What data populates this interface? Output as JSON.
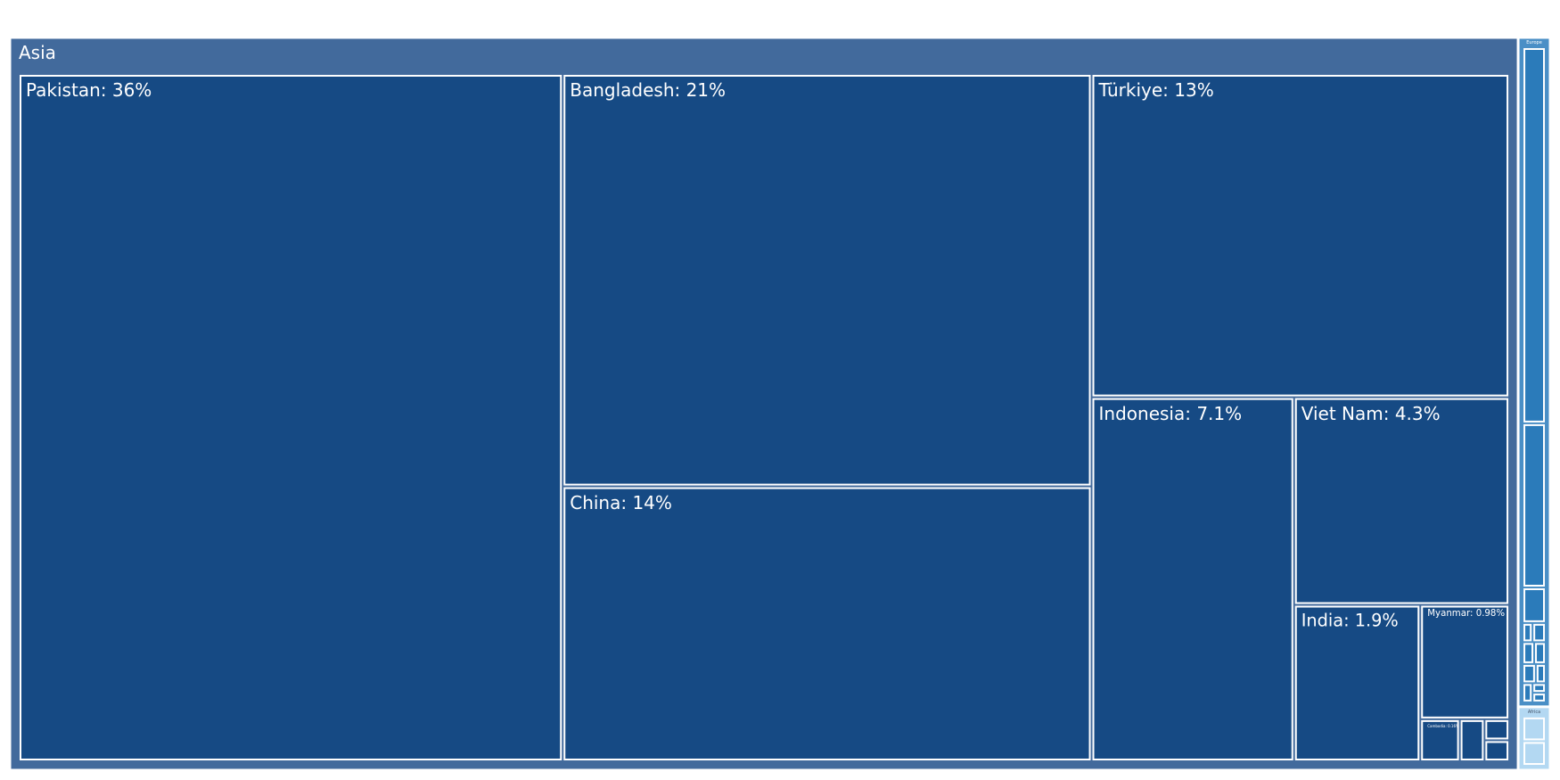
{
  "chart_data": {
    "type": "treemap",
    "groups": [
      {
        "name": "Asia",
        "value": 97.9,
        "color": "#426a9c",
        "child_color": "#164a84",
        "text_color": "#ffffff",
        "labels": [
          "Pakistan: 36%",
          "Bangladesh: 21%",
          "China: 14%",
          "Türkiye: 13%",
          "Indonesia: 7.1%",
          "Viet Nam: 4.3%",
          "India: 1.9%",
          "Myanmar: 0.98%",
          "Cambodia: 0.16%",
          null,
          null,
          null
        ],
        "values": [
          36,
          21,
          14,
          13,
          7.1,
          4.3,
          1.9,
          0.98,
          0.16,
          0.1,
          0.05,
          0.05
        ]
      },
      {
        "name": "Europe",
        "value": 1.9,
        "color": "#4a8fc6",
        "child_color": "#2b7bba",
        "text_color": "#ffffff",
        "labels": [
          null,
          null,
          null,
          null,
          null,
          null,
          null,
          null,
          null,
          null,
          null,
          null
        ],
        "values": [
          55,
          24,
          5.2,
          1.2,
          1.6,
          1.6,
          1.6,
          1.6,
          1.2,
          1.2,
          0.8,
          0.8
        ]
      },
      {
        "name": "Africa",
        "value": 0.18,
        "color": "#b3d8f2",
        "child_color": "#b3d8f2",
        "text_color": "#44546a",
        "labels": [
          null,
          null
        ],
        "values": [
          50,
          50
        ]
      }
    ]
  }
}
